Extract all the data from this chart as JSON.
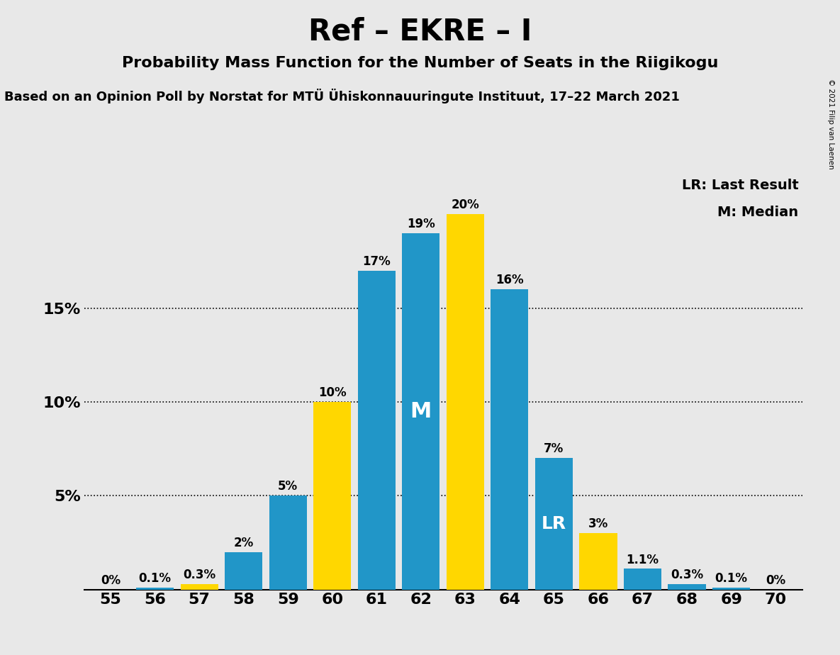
{
  "title": "Ref – EKRE – I",
  "subtitle": "Probability Mass Function for the Number of Seats in the Riigikogu",
  "source_line": "Based on an Opinion Poll by Norstat for MTÜ Ühiskonnauuringute Instituut, 17–22 March 2021",
  "copyright": "© 2021 Filip van Laenen",
  "legend_lr": "LR: Last Result",
  "legend_m": "M: Median",
  "seats": [
    55,
    56,
    57,
    58,
    59,
    60,
    61,
    62,
    63,
    64,
    65,
    66,
    67,
    68,
    69,
    70
  ],
  "values": [
    0.0,
    0.1,
    0.3,
    2.0,
    5.0,
    10.0,
    17.0,
    19.0,
    20.0,
    16.0,
    7.0,
    3.0,
    1.1,
    0.3,
    0.1,
    0.0
  ],
  "bar_labels": [
    "0%",
    "0.1%",
    "0.3%",
    "2%",
    "5%",
    "10%",
    "17%",
    "19%",
    "20%",
    "16%",
    "7%",
    "3%",
    "1.1%",
    "0.3%",
    "0.1%",
    "0%"
  ],
  "median_seat": 62,
  "lr_seat": 65,
  "yellow_seats": [
    57,
    60,
    63,
    66
  ],
  "blue_color": "#2196C8",
  "yellow_color": "#FFD700",
  "background_color": "#E8E8E8",
  "plot_bg_color": "#E8E8E8",
  "ylim": [
    0,
    22
  ],
  "yticks": [
    5,
    10,
    15
  ],
  "ytick_labels": [
    "5%",
    "10%",
    "15%"
  ],
  "title_fontsize": 30,
  "subtitle_fontsize": 16,
  "source_fontsize": 13,
  "bar_label_fontsize": 12,
  "median_label_fontsize": 22,
  "lr_label_fontsize": 18,
  "tick_fontsize": 16,
  "legend_fontsize": 14
}
